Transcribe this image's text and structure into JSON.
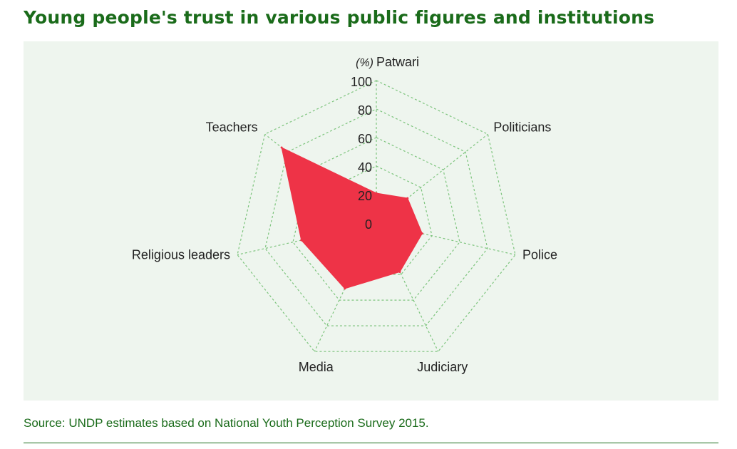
{
  "title": "Young people's trust in various public figures and institutions",
  "source": {
    "label": "Source:",
    "text": "UNDP estimates based on National Youth Perception Survey 2015."
  },
  "colors": {
    "accent": "#1a6b1a",
    "fill": "#ee3347",
    "grid": "#7dc47d",
    "panel": "#eef5ee"
  },
  "chart_data": {
    "type": "radar",
    "unit_label": "(%)",
    "axes": [
      "Patwari",
      "Politicians",
      "Police",
      "Judiciary",
      "Media",
      "Religious leaders",
      "Teachers"
    ],
    "values": [
      21,
      28,
      33,
      38,
      51,
      54,
      85
    ],
    "rlim": [
      0,
      100
    ],
    "ticks": [
      0,
      20,
      40,
      60,
      80,
      100
    ],
    "grid": true
  }
}
